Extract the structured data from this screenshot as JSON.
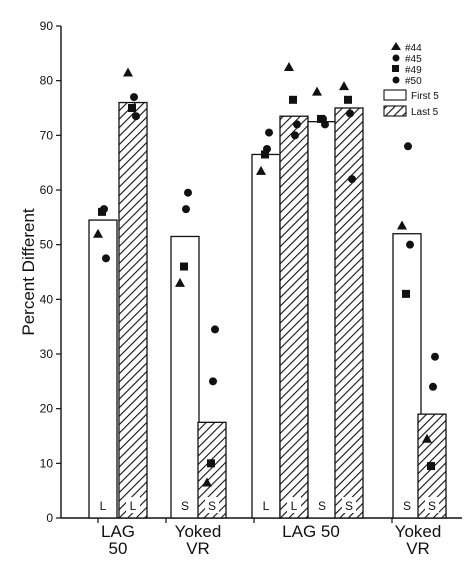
{
  "chart_data": {
    "type": "bar",
    "title": "",
    "ylabel": "Percent Different",
    "ylim": [
      0,
      90
    ],
    "yticks": [
      "0",
      "10",
      "20",
      "30",
      "40",
      "50",
      "60",
      "70",
      "80",
      "90"
    ],
    "group_labels": [
      [
        "LAG",
        "50"
      ],
      [
        "Yoked",
        "VR"
      ],
      [
        "LAG 50"
      ],
      [
        "Yoked",
        "VR"
      ]
    ],
    "series": [
      {
        "name": "First 5",
        "pattern": "open"
      },
      {
        "name": "Last 5",
        "pattern": "hatched"
      }
    ],
    "subjects": [
      {
        "name": "#44",
        "marker": "triangle"
      },
      {
        "name": "#45",
        "marker": "circle"
      },
      {
        "name": "#49",
        "marker": "square"
      },
      {
        "name": "#50",
        "marker": "circle"
      }
    ],
    "bars": [
      {
        "group": 0,
        "series": "First 5",
        "value": 54.5,
        "condition": "L",
        "points": {
          "#44": 52,
          "#45": 56.5,
          "#49": 56,
          "#50": 47.5
        }
      },
      {
        "group": 0,
        "series": "Last 5",
        "value": 76,
        "condition": "L",
        "points": {
          "#44": 81.5,
          "#45": 77,
          "#49": 75,
          "#50": 73.5
        }
      },
      {
        "group": 1,
        "series": "First 5",
        "value": 51.5,
        "condition": "S",
        "points": {
          "#44": 43,
          "#45": 56.5,
          "#49": 46,
          "#50": 59.5
        }
      },
      {
        "group": 1,
        "series": "Last 5",
        "value": 17.5,
        "condition": "S",
        "points": {
          "#44": 6.5,
          "#45": 25,
          "#49": 10,
          "#50": 34.5
        }
      },
      {
        "group": 2,
        "series": "First 5",
        "value": 66.5,
        "condition": "L",
        "points": {
          "#44": 63.5,
          "#45": 67.5,
          "#49": 66.5,
          "#50": 70.5
        }
      },
      {
        "group": 2,
        "series": "Last 5",
        "value": 73.5,
        "condition": "L",
        "points": {
          "#44": 82.5,
          "#45": 70,
          "#49": 76.5,
          "#50": 72
        }
      },
      {
        "group": 2,
        "series": "First 5",
        "value": 72.5,
        "condition": "S",
        "points": {
          "#44": 78,
          "#45": 73,
          "#49": 73,
          "#50": 72
        }
      },
      {
        "group": 2,
        "series": "Last 5",
        "value": 75,
        "condition": "S",
        "points": {
          "#44": 79,
          "#45": 74,
          "#49": 76.5,
          "#50": 62
        }
      },
      {
        "group": 3,
        "series": "First 5",
        "value": 52,
        "condition": "S",
        "points": {
          "#44": 53.5,
          "#45": 68,
          "#49": 41,
          "#50": 50
        }
      },
      {
        "group": 3,
        "series": "Last 5",
        "value": 19,
        "condition": "S",
        "points": {
          "#44": 14.5,
          "#45": 24,
          "#49": 9.5,
          "#50": 29.5
        }
      }
    ]
  }
}
